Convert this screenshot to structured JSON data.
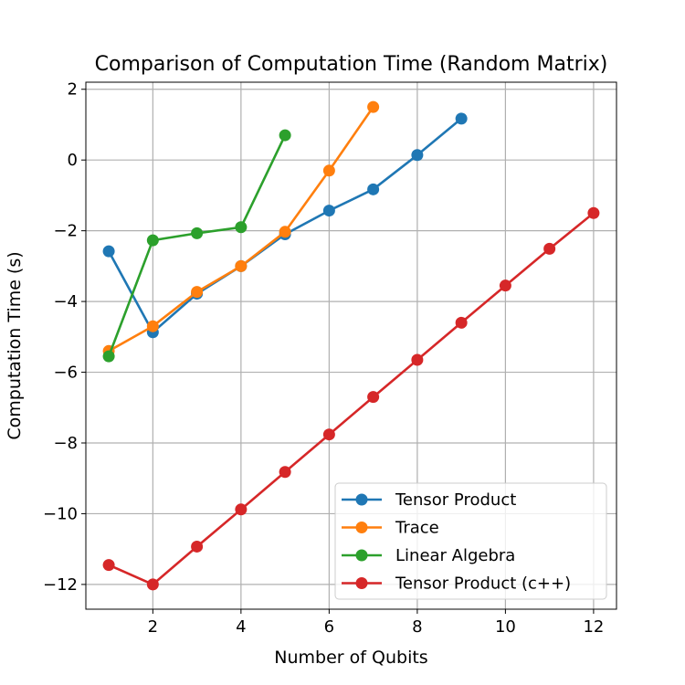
{
  "chart_data": {
    "type": "line",
    "title": "Comparison of Computation Time (Random Matrix)",
    "xlabel": "Number of Qubits",
    "ylabel": "Computation Time (s)",
    "xlim": [
      0.48,
      12.52
    ],
    "ylim": [
      -12.7,
      2.2
    ],
    "xticks": [
      2,
      4,
      6,
      8,
      10,
      12
    ],
    "yticks": [
      2,
      0,
      -2,
      -4,
      -6,
      -8,
      -10,
      -12
    ],
    "grid": true,
    "legend_position": "lower-right",
    "series": [
      {
        "name": "Tensor Product",
        "color": "#1f77b4",
        "x": [
          1,
          2,
          3,
          4,
          5,
          6,
          7,
          8,
          9
        ],
        "y": [
          -2.58,
          -4.87,
          -3.78,
          -3.0,
          -2.1,
          -1.43,
          -0.83,
          0.14,
          1.17
        ]
      },
      {
        "name": "Trace",
        "color": "#ff7f0e",
        "x": [
          1,
          2,
          3,
          4,
          5,
          6,
          7
        ],
        "y": [
          -5.4,
          -4.7,
          -3.73,
          -3.0,
          -2.03,
          -0.3,
          1.5
        ]
      },
      {
        "name": "Linear Algebra",
        "color": "#2ca02c",
        "x": [
          1,
          2,
          3,
          4,
          5
        ],
        "y": [
          -5.55,
          -2.27,
          -2.07,
          -1.9,
          0.7
        ]
      },
      {
        "name": "Tensor Product (c++)",
        "color": "#d62728",
        "x": [
          1,
          2,
          3,
          4,
          5,
          6,
          7,
          8,
          9,
          10,
          11,
          12
        ],
        "y": [
          -11.45,
          -12.0,
          -10.93,
          -9.88,
          -8.82,
          -7.76,
          -6.7,
          -5.65,
          -4.6,
          -3.55,
          -2.51,
          -1.5
        ]
      }
    ]
  }
}
